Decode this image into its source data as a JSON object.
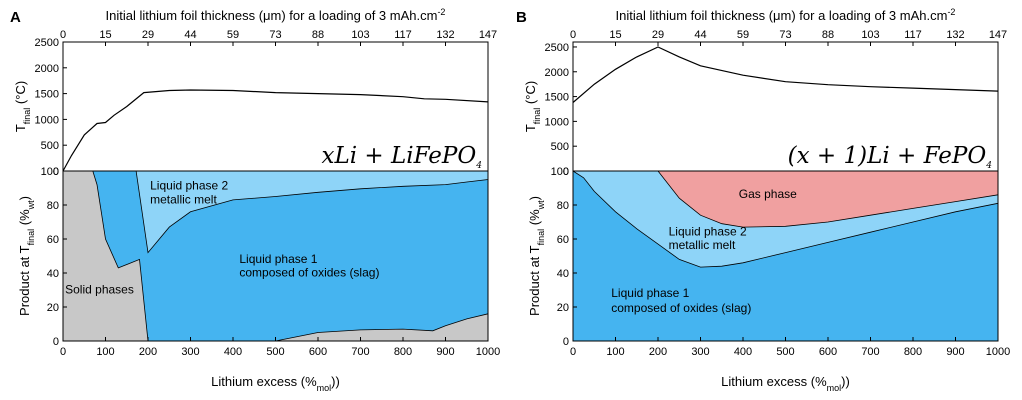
{
  "chart_data": [
    {
      "panel": "A",
      "type": "line+area",
      "top_axis_label": "Initial lithium foil thickness (μm) for a loading of 3 mAh.cm⁻²",
      "top_ticks": [
        "0",
        "15",
        "29",
        "44",
        "59",
        "73",
        "88",
        "103",
        "117",
        "132",
        "147"
      ],
      "equation": "xLi + LiFePO₄",
      "temperature": {
        "ylabel": "T_final (°C)",
        "ylim": [
          0,
          2500
        ],
        "yticks": [
          0,
          500,
          1000,
          1500,
          2000,
          2500
        ],
        "x": [
          0,
          20,
          50,
          80,
          100,
          120,
          150,
          190,
          250,
          300,
          400,
          500,
          600,
          700,
          800,
          850,
          900,
          1000
        ],
        "y": [
          0,
          300,
          700,
          920,
          940,
          1080,
          1250,
          1520,
          1560,
          1570,
          1560,
          1520,
          1500,
          1480,
          1440,
          1400,
          1390,
          1340
        ]
      },
      "product": {
        "xlabel": "Lithium excess (%mol))",
        "ylabel": "Product at T_final (%wt)",
        "xlim": [
          0,
          1000
        ],
        "ylim": [
          0,
          100
        ],
        "xticks": [
          0,
          100,
          200,
          300,
          400,
          500,
          600,
          700,
          800,
          900,
          1000
        ],
        "yticks": [
          0,
          20,
          40,
          60,
          80,
          100
        ],
        "regions": [
          {
            "name": "Solid phases",
            "color": "#c8c8c8"
          },
          {
            "name": "Liquid phase 1 composed of oxides (slag)",
            "color": "#45b4f0"
          },
          {
            "name": "Liquid phase 2 metallic melt",
            "color": "#8ed4f8"
          }
        ],
        "solid_upper": {
          "x": [
            0,
            70,
            80,
            100,
            130,
            150,
            180,
            200,
            210,
            220,
            500,
            600,
            700,
            800,
            870,
            900,
            950,
            1000
          ],
          "y": [
            100,
            100,
            92,
            60,
            43,
            45,
            48,
            0,
            0,
            0,
            0,
            5,
            6.5,
            7,
            6,
            9,
            13,
            16
          ]
        },
        "metal_lower": {
          "x": [
            150,
            160,
            172,
            200,
            250,
            300,
            400,
            500,
            600,
            700,
            800,
            900,
            950,
            1000
          ],
          "y": [
            100,
            100,
            100,
            52,
            67,
            76,
            83,
            85,
            87.5,
            89.5,
            91,
            92,
            93.5,
            95
          ]
        },
        "labels": {
          "solid": "Solid phases",
          "liq1_line1": "Liquid phase 1",
          "liq1_line2": "composed of oxides (slag)",
          "liq2_line1": "Liquid phase 2",
          "liq2_line2": "metallic melt"
        }
      }
    },
    {
      "panel": "B",
      "type": "line+area",
      "top_axis_label": "Initial lithium foil thickness (μm) for a loading of 3 mAh.cm⁻²",
      "top_ticks": [
        "0",
        "15",
        "29",
        "44",
        "59",
        "73",
        "88",
        "103",
        "117",
        "132",
        "147"
      ],
      "equation": "(x + 1)Li + FePO₄",
      "temperature": {
        "ylabel": "T_final (°C)",
        "ylim": [
          0,
          2600
        ],
        "yticks": [
          0,
          500,
          1000,
          1500,
          2000,
          2500
        ],
        "x": [
          0,
          50,
          100,
          150,
          200,
          250,
          300,
          400,
          500,
          600,
          700,
          800,
          900,
          1000
        ],
        "y": [
          1380,
          1750,
          2050,
          2300,
          2500,
          2300,
          2120,
          1930,
          1800,
          1740,
          1700,
          1670,
          1640,
          1610
        ]
      },
      "product": {
        "xlabel": "Lithium excess (%mol))",
        "ylabel": "Product at T_final (%wt)",
        "xlim": [
          0,
          1000
        ],
        "ylim": [
          0,
          100
        ],
        "xticks": [
          0,
          100,
          200,
          300,
          400,
          500,
          600,
          700,
          800,
          900,
          1000
        ],
        "yticks": [
          0,
          20,
          40,
          60,
          80,
          100
        ],
        "regions": [
          {
            "name": "Liquid phase 1 composed of oxides (slag)",
            "color": "#45b4f0"
          },
          {
            "name": "Liquid phase 2 metallic melt",
            "color": "#8ed4f8"
          },
          {
            "name": "Gas phase",
            "color": "#f0a0a0"
          }
        ],
        "slag_upper": {
          "x": [
            0,
            25,
            50,
            100,
            150,
            200,
            250,
            300,
            350,
            400,
            500,
            600,
            700,
            800,
            900,
            1000
          ],
          "y": [
            100,
            96,
            88,
            76,
            66,
            57,
            48,
            43.5,
            44,
            46,
            52,
            58,
            64,
            70,
            76,
            81
          ]
        },
        "gas_lower": {
          "x": [
            200,
            250,
            300,
            350,
            400,
            500,
            600,
            700,
            800,
            900,
            1000
          ],
          "y": [
            100,
            84,
            74,
            69,
            67,
            67.5,
            70,
            74,
            78,
            82,
            86
          ]
        },
        "labels": {
          "gas": "Gas phase",
          "liq1_line1": "Liquid phase 1",
          "liq1_line2": "composed of oxides (slag)",
          "liq2_line1": "Liquid phase 2",
          "liq2_line2": "metallic melt"
        }
      }
    }
  ]
}
